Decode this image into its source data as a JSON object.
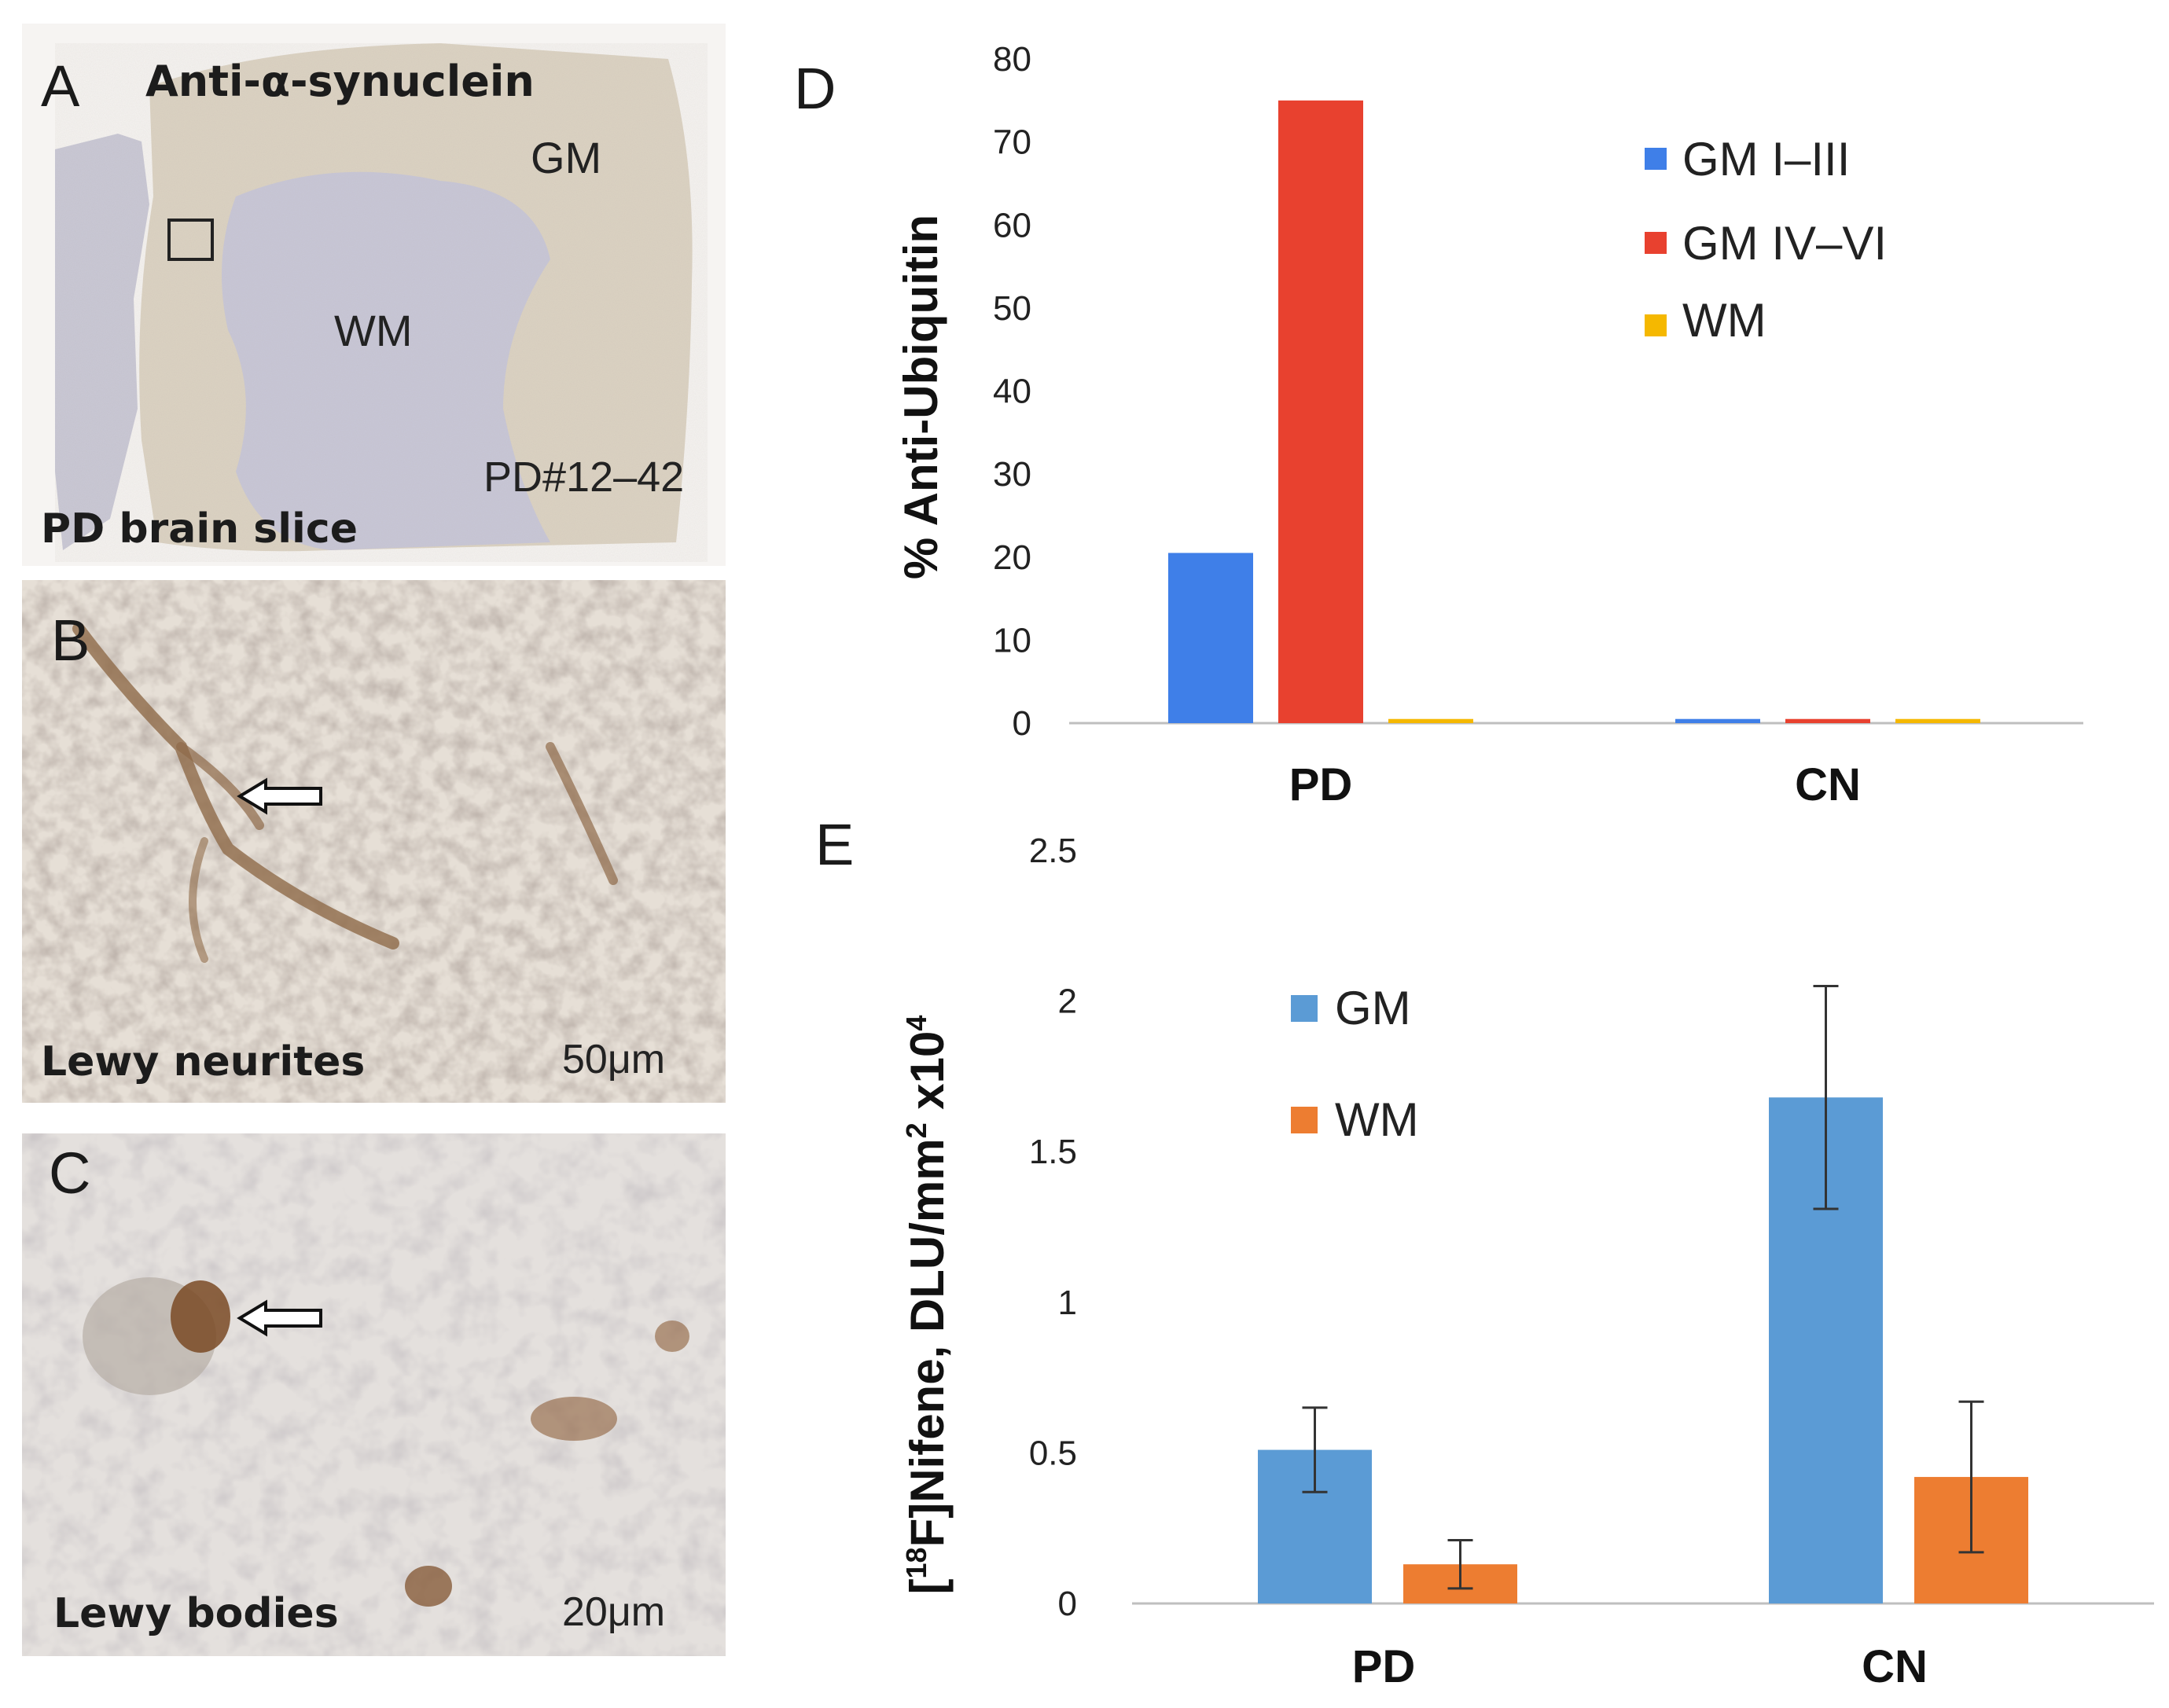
{
  "panels": {
    "a": {
      "letter": "A",
      "stain": "Anti-α-synuclein",
      "gm": "GM",
      "wm": "WM",
      "case_id": "PD#12–42",
      "caption": "PD brain slice"
    },
    "b": {
      "letter": "B",
      "caption": "Lewy neurites",
      "scale": "50μm"
    },
    "c": {
      "letter": "C",
      "caption": "Lewy bodies",
      "scale": "20μm"
    },
    "d": {
      "letter": "D"
    },
    "e": {
      "letter": "E"
    }
  },
  "colors": {
    "d_gm13": "#3f7fe8",
    "d_gm46": "#e8412f",
    "d_wm": "#f5b800",
    "e_gm": "#5b9bd5",
    "e_wm": "#ed7d31",
    "axis": "#bfbfbf",
    "errbar": "#333333"
  },
  "chart_data": [
    {
      "panel": "D",
      "type": "bar",
      "title": "",
      "xlabel": "",
      "ylabel": "% Anti-Ubiquitin",
      "categories": [
        "PD",
        "CN"
      ],
      "series": [
        {
          "name": "GM I–III",
          "values": [
            20.5,
            0.5
          ]
        },
        {
          "name": "GM IV–VI",
          "values": [
            75,
            0.5
          ]
        },
        {
          "name": "WM",
          "values": [
            0.5,
            0.5
          ]
        }
      ],
      "ylim": [
        0,
        80
      ],
      "yticks": [
        0,
        10,
        20,
        30,
        40,
        50,
        60,
        70,
        80
      ],
      "legend": "top-right"
    },
    {
      "panel": "E",
      "type": "bar",
      "title": "",
      "xlabel": "",
      "ylabel": "[18F]Nifene, DLU/mm2 x104",
      "ylabel_parts": {
        "pre": "[",
        "sup1": "18",
        "mid": "F]Nifene, DLU/mm",
        "sup2": "2",
        "mid2": " x10",
        "sup3": "4"
      },
      "categories": [
        "PD",
        "CN"
      ],
      "series": [
        {
          "name": "GM",
          "values": [
            0.51,
            1.68
          ],
          "errors": [
            0.14,
            0.37
          ]
        },
        {
          "name": "WM",
          "values": [
            0.13,
            0.42
          ],
          "errors": [
            0.08,
            0.25
          ]
        }
      ],
      "ylim": [
        0,
        2.5
      ],
      "yticks": [
        "0",
        "0.5",
        "1",
        "1.5",
        "2",
        "2.5"
      ],
      "legend": "upper-left"
    }
  ]
}
